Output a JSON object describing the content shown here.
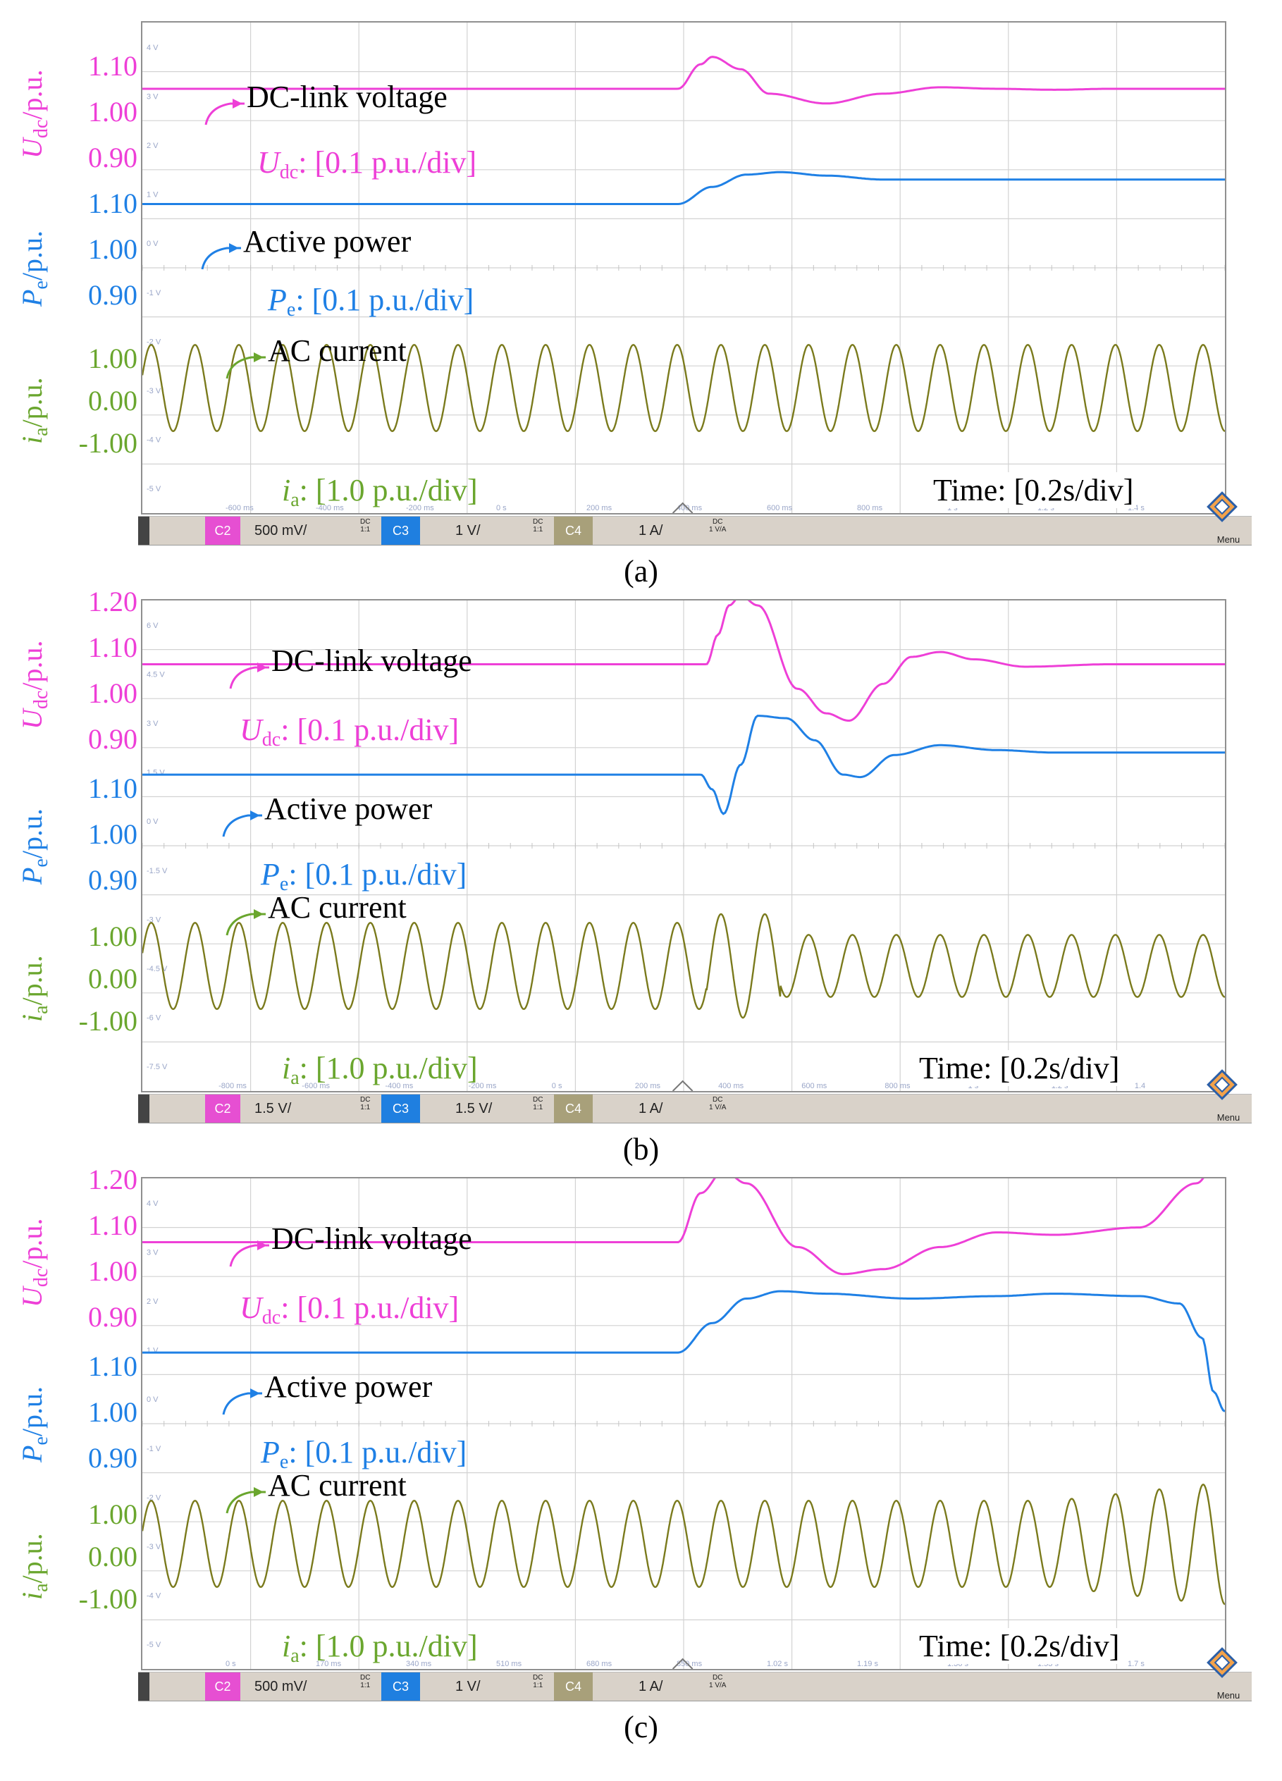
{
  "colors": {
    "udc": "#ee3fd7",
    "pe": "#1f80e5",
    "ia": "#7a7a1c",
    "ia_text": "#6aa62e",
    "grid": "#d2d2d2",
    "chip_c2": "#e64fd2",
    "chip_c3": "#1f7fe0",
    "chip_c4": "#a8a07a"
  },
  "chart_data": [
    {
      "type": "line",
      "panel": "(a)",
      "x_unit": "s",
      "x_label": "Time: [0.2s/div]",
      "series": [
        {
          "name": "DC-link voltage",
          "scale": "[0.1 p.u./div]",
          "ylabel": "Udc/p.u.",
          "ticks": [
            "1.10",
            "1.00",
            "0.90"
          ],
          "x": [
            0,
            0.94,
            0.98,
            1.0,
            1.05,
            1.1,
            1.2,
            1.3,
            1.4,
            1.5,
            1.6,
            1.7,
            1.9
          ],
          "y": [
            1.0,
            1.0,
            1.05,
            1.065,
            1.04,
            0.99,
            0.97,
            0.99,
            1.003,
            1.0,
            0.998,
            1.0,
            1.0
          ]
        },
        {
          "name": "Active power",
          "scale": "[0.1 p.u./div]",
          "ylabel": "Pe/p.u.",
          "ticks": [
            "1.10",
            "1.00",
            "0.90"
          ],
          "x": [
            0,
            0.94,
            1.0,
            1.06,
            1.12,
            1.2,
            1.3,
            1.5,
            1.9
          ],
          "y": [
            1.0,
            1.0,
            1.035,
            1.06,
            1.065,
            1.058,
            1.05,
            1.05,
            1.05
          ]
        },
        {
          "name": "AC current",
          "scale": "[1.0 p.u./div]",
          "ylabel": "ia/p.u.",
          "ticks": [
            "1.00",
            "0.00",
            "-1.00"
          ],
          "frequency_hz": 13,
          "amplitude": [
            1.0,
            1.0
          ]
        }
      ]
    },
    {
      "type": "line",
      "panel": "(b)",
      "x_unit": "s",
      "x_label": "Time: [0.2s/div]",
      "series": [
        {
          "name": "DC-link voltage",
          "scale": "[0.1 p.u./div]",
          "ylabel": "Udc/p.u.",
          "ticks": [
            "1.20",
            "1.10",
            "1.00",
            "0.90"
          ],
          "x": [
            0,
            0.99,
            1.01,
            1.03,
            1.05,
            1.08,
            1.15,
            1.2,
            1.24,
            1.3,
            1.35,
            1.4,
            1.46,
            1.55,
            1.7,
            1.9
          ],
          "y": [
            1.0,
            1.0,
            1.06,
            1.12,
            1.14,
            1.12,
            0.95,
            0.9,
            0.885,
            0.96,
            1.015,
            1.025,
            1.01,
            0.995,
            1.0,
            1.0
          ]
        },
        {
          "name": "Active power",
          "scale": "[0.1 p.u./div]",
          "ylabel": "Pe/p.u.",
          "ticks": [
            "1.10",
            "1.00",
            "0.90"
          ],
          "x": [
            0,
            0.98,
            1.0,
            1.02,
            1.05,
            1.08,
            1.13,
            1.18,
            1.23,
            1.26,
            1.32,
            1.4,
            1.5,
            1.6,
            1.9
          ],
          "y": [
            1.0,
            1.0,
            0.97,
            0.92,
            1.02,
            1.12,
            1.115,
            1.07,
            1.0,
            0.995,
            1.04,
            1.06,
            1.05,
            1.045,
            1.045
          ]
        },
        {
          "name": "AC current",
          "scale": "[1.0 p.u./div]",
          "ylabel": "ia/p.u.",
          "ticks": [
            "1.00",
            "0.00",
            "-1.00"
          ],
          "frequency_hz": 13,
          "amplitude": [
            1.0,
            1.2,
            0.72
          ]
        }
      ]
    },
    {
      "type": "line",
      "panel": "(c)",
      "x_unit": "s",
      "x_label": "Time: [0.2s/div]",
      "series": [
        {
          "name": "DC-link voltage",
          "scale": "[0.1 p.u./div]",
          "ylabel": "Udc/p.u.",
          "ticks": [
            "1.20",
            "1.10",
            "1.00",
            "0.90"
          ],
          "x": [
            0,
            0.94,
            0.98,
            1.02,
            1.06,
            1.15,
            1.23,
            1.3,
            1.4,
            1.5,
            1.6,
            1.75,
            1.85,
            1.9
          ],
          "y": [
            1.0,
            1.0,
            1.1,
            1.145,
            1.12,
            0.99,
            0.935,
            0.945,
            0.99,
            1.02,
            1.015,
            1.03,
            1.12,
            1.2
          ]
        },
        {
          "name": "Active power",
          "scale": "[0.1 p.u./div]",
          "ylabel": "Pe/p.u.",
          "ticks": [
            "1.10",
            "1.00",
            "0.90"
          ],
          "x": [
            0,
            0.94,
            1.0,
            1.06,
            1.12,
            1.2,
            1.35,
            1.5,
            1.6,
            1.75,
            1.82,
            1.86,
            1.88,
            1.9
          ],
          "y": [
            1.0,
            1.0,
            1.06,
            1.11,
            1.125,
            1.12,
            1.11,
            1.115,
            1.12,
            1.115,
            1.1,
            1.03,
            0.92,
            0.88
          ]
        },
        {
          "name": "AC current",
          "scale": "[1.0 p.u./div]",
          "ylabel": "ia/p.u.",
          "ticks": [
            "1.00",
            "0.00",
            "-1.00"
          ],
          "frequency_hz": 13,
          "amplitude": [
            1.0,
            1.0,
            1.4
          ]
        }
      ]
    }
  ],
  "panels": [
    {
      "caption": "(a)",
      "toolbar": {
        "c2": "C2",
        "c2_scale": "500 mV/",
        "c3": "C3",
        "c3_scale": "1 V/",
        "c4": "C4",
        "c4_scale": "1 A/",
        "dc": "DC",
        "ratio": "1:1",
        "c4_ratio": "1 V/A",
        "menu": "Menu"
      },
      "small_labels": {
        "v1": "4 V",
        "v2": "3 V",
        "v3": "2 V",
        "v4": "1 V",
        "v5": "0 V",
        "v6": "-1 V",
        "v7": "-2 V",
        "v8": "-3 V",
        "v9": "-4 V",
        "v10": "-5 V"
      },
      "time_ticks": [
        "-600 ms",
        "-400 ms",
        "-200 ms",
        "0 s",
        "200 ms",
        "400 ms",
        "600 ms",
        "800 ms",
        "1 s",
        "1.2 s",
        "1.4 s"
      ]
    },
    {
      "caption": "(b)",
      "toolbar": {
        "c2": "C2",
        "c2_scale": "1.5 V/",
        "c3": "C3",
        "c3_scale": "1.5 V/",
        "c4": "C4",
        "c4_scale": "1 A/",
        "dc": "DC",
        "ratio": "1:1",
        "c4_ratio": "1 V/A",
        "menu": "Menu"
      },
      "small_labels": {
        "v1": "6 V",
        "v2": "4.5 V",
        "v3": "3 V",
        "v4": "1.5 V",
        "v5": "0 V",
        "v6": "-1.5 V",
        "v7": "-3 V",
        "v8": "-4.5 V",
        "v9": "-6 V",
        "v10": "-7.5 V"
      },
      "time_ticks": [
        "-800 ms",
        "-600 ms",
        "-400 ms",
        "-200 ms",
        "0 s",
        "200 ms",
        "400 ms",
        "600 ms",
        "800 ms",
        "1 s",
        "1.2 s",
        "1.4"
      ]
    },
    {
      "caption": "(c)",
      "toolbar": {
        "c2": "C2",
        "c2_scale": "500 mV/",
        "c3": "C3",
        "c3_scale": "1 V/",
        "c4": "C4",
        "c4_scale": "1 A/",
        "dc": "DC",
        "ratio": "1:1",
        "c4_ratio": "1 V/A",
        "menu": "Menu"
      },
      "small_labels": {
        "v1": "4 V",
        "v2": "3 V",
        "v3": "2 V",
        "v4": "1 V",
        "v5": "0 V",
        "v6": "-1 V",
        "v7": "-2 V",
        "v8": "-3 V",
        "v9": "-4 V",
        "v10": "-5 V"
      },
      "time_ticks": [
        "0 s",
        "170 ms",
        "340 ms",
        "510 ms",
        "680 ms",
        "850 ms",
        "1.02 s",
        "1.19 s",
        "1.36 s",
        "1.53 s",
        "1.7 s"
      ]
    }
  ],
  "annotations": {
    "udc_name": "DC-link voltage",
    "pe_name": "Active power",
    "ia_name": "AC current",
    "udc_symbol": "U",
    "udc_sub": "dc",
    "pe_symbol": "P",
    "pe_sub": "e",
    "ia_symbol": "i",
    "ia_sub": "a",
    "scale_01": ": [0.1 p.u./div]",
    "scale_10": ": [1.0 p.u./div]",
    "ylabel_unit": "/p.u.",
    "time_label": "Time: [0.2s/div]"
  }
}
